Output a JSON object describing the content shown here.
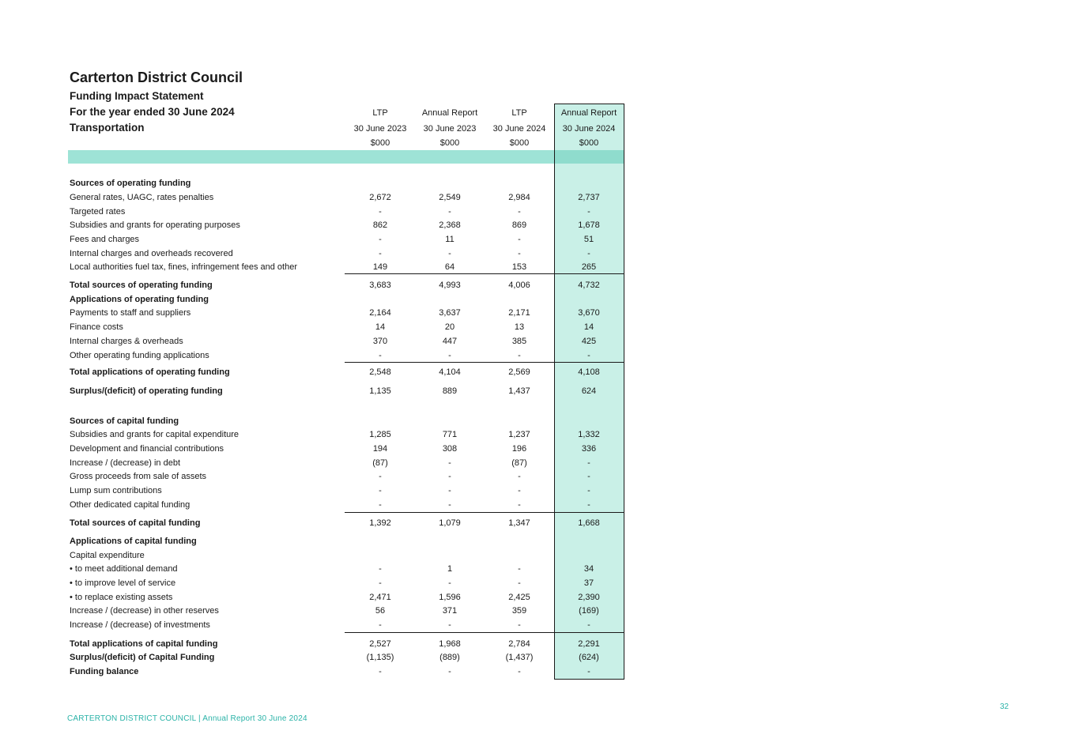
{
  "title": "Carterton District Council",
  "subtitle": "Funding Impact Statement",
  "period": "For the year ended 30 June 2024",
  "activity": "Transportation",
  "columns": [
    {
      "type": "LTP",
      "date": "30 June 2023",
      "unit": "$000"
    },
    {
      "type": "Annual Report",
      "date": "30 June 2023",
      "unit": "$000"
    },
    {
      "type": "LTP",
      "date": "30 June 2024",
      "unit": "$000"
    },
    {
      "type": "Annual Report",
      "date": "30 June 2024",
      "unit": "$000"
    }
  ],
  "rows": [
    {
      "label": "Sources of operating funding",
      "bold": true,
      "values": [
        "",
        "",
        "",
        ""
      ]
    },
    {
      "label": "General rates, UAGC, rates penalties",
      "bold": false,
      "values": [
        "2,672",
        "2,549",
        "2,984",
        "2,737"
      ]
    },
    {
      "label": "Targeted rates",
      "bold": false,
      "values": [
        "-",
        "-",
        "-",
        "-"
      ]
    },
    {
      "label": "Subsidies and grants for operating purposes",
      "bold": false,
      "values": [
        "862",
        "2,368",
        "869",
        "1,678"
      ]
    },
    {
      "label": "Fees and charges",
      "bold": false,
      "values": [
        "-",
        "11",
        "-",
        "51"
      ]
    },
    {
      "label": "Internal charges and overheads recovered",
      "bold": false,
      "values": [
        "-",
        "-",
        "-",
        "-"
      ]
    },
    {
      "label": "Local authorities fuel tax, fines, infringement fees and other",
      "bold": false,
      "values": [
        "149",
        "64",
        "153",
        "265"
      ]
    },
    {
      "label": "Total sources of operating funding",
      "bold": true,
      "values": [
        "3,683",
        "4,993",
        "4,006",
        "4,732"
      ]
    },
    {
      "label": "Applications of operating funding",
      "bold": true,
      "values": [
        "",
        "",
        "",
        ""
      ]
    },
    {
      "label": "Payments to staff and suppliers",
      "bold": false,
      "values": [
        "2,164",
        "3,637",
        "2,171",
        "3,670"
      ]
    },
    {
      "label": "Finance costs",
      "bold": false,
      "values": [
        "14",
        "20",
        "13",
        "14"
      ]
    },
    {
      "label": "Internal charges & overheads",
      "bold": false,
      "values": [
        "370",
        "447",
        "385",
        "425"
      ]
    },
    {
      "label": "Other operating funding applications",
      "bold": false,
      "values": [
        "-",
        "-",
        "-",
        "-"
      ]
    },
    {
      "label": "Total applications of operating funding",
      "bold": true,
      "values": [
        "2,548",
        "4,104",
        "2,569",
        "4,108"
      ]
    },
    {
      "label": "Surplus/(deficit) of operating funding",
      "bold": true,
      "values": [
        "1,135",
        "889",
        "1,437",
        "624"
      ]
    },
    {
      "label": "Sources of capital funding",
      "bold": true,
      "values": [
        "",
        "",
        "",
        ""
      ]
    },
    {
      "label": "Subsidies and grants for capital expenditure",
      "bold": false,
      "values": [
        "1,285",
        "771",
        "1,237",
        "1,332"
      ]
    },
    {
      "label": "Development and financial contributions",
      "bold": false,
      "values": [
        "194",
        "308",
        "196",
        "336"
      ]
    },
    {
      "label": "Increase / (decrease) in debt",
      "bold": false,
      "values": [
        "(87)",
        "-",
        "(87)",
        "-"
      ]
    },
    {
      "label": "Gross proceeds from sale of assets",
      "bold": false,
      "values": [
        "-",
        "-",
        "-",
        "-"
      ]
    },
    {
      "label": "Lump sum contributions",
      "bold": false,
      "values": [
        "-",
        "-",
        "-",
        "-"
      ]
    },
    {
      "label": "Other dedicated capital funding",
      "bold": false,
      "values": [
        "-",
        "-",
        "-",
        "-"
      ]
    },
    {
      "label": "Total sources of capital funding",
      "bold": true,
      "values": [
        "1,392",
        "1,079",
        "1,347",
        "1,668"
      ]
    },
    {
      "label": "Applications of capital funding",
      "bold": true,
      "values": [
        "",
        "",
        "",
        ""
      ]
    },
    {
      "label": "Capital expenditure",
      "bold": false,
      "values": [
        "",
        "",
        "",
        ""
      ]
    },
    {
      "label": "• to meet additional demand",
      "bold": false,
      "values": [
        "-",
        "1",
        "-",
        "34"
      ]
    },
    {
      "label": "• to improve level of service",
      "bold": false,
      "values": [
        "-",
        "-",
        "-",
        "37"
      ]
    },
    {
      "label": "• to replace existing assets",
      "bold": false,
      "values": [
        "2,471",
        "1,596",
        "2,425",
        "2,390"
      ]
    },
    {
      "label": "Increase / (decrease) in other reserves",
      "bold": false,
      "values": [
        "56",
        "371",
        "359",
        "(169)"
      ]
    },
    {
      "label": "Increase / (decrease) of investments",
      "bold": false,
      "values": [
        "-",
        "-",
        "-",
        "-"
      ]
    },
    {
      "label": "Total applications of capital funding",
      "bold": true,
      "values": [
        "2,527",
        "1,968",
        "2,784",
        "2,291"
      ]
    },
    {
      "label": "Surplus/(deficit) of Capital Funding",
      "bold": true,
      "values": [
        "(1,135)",
        "(889)",
        "(1,437)",
        "(624)"
      ]
    },
    {
      "label": "Funding balance",
      "bold": true,
      "values": [
        "-",
        "-",
        "-",
        "-"
      ]
    }
  ],
  "footer": "CARTERTON DISTRICT COUNCIL | Annual Report 30 June 2024",
  "page_number": "32",
  "colors": {
    "highlight": "#c9f0e7",
    "band": "#9ee3d6",
    "accent": "#2bb3a8"
  }
}
